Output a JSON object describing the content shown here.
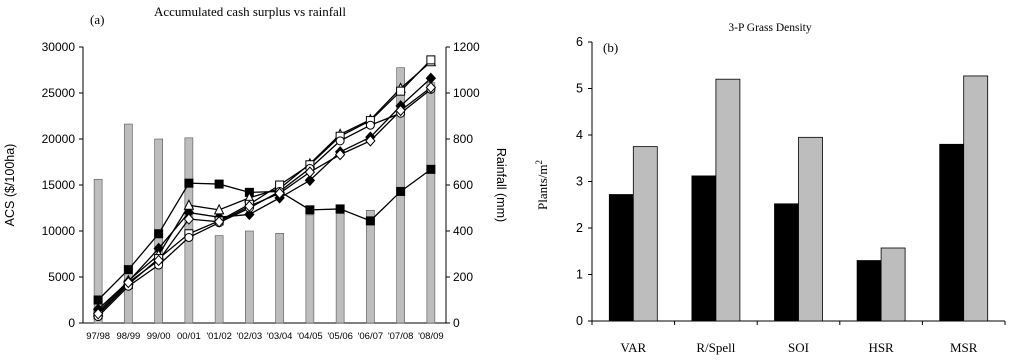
{
  "chart_data": [
    {
      "type": "line",
      "panel_label": "(a)",
      "title": "Accumulated cash surplus vs rainfall",
      "ylabel": "ACS ($/100ha)",
      "y2label": "Rainfall (mm)",
      "categories": [
        "97/98",
        "98/99",
        "99/00",
        "00/01",
        "'01/02",
        "'02/03",
        "'03/04",
        "'04/05",
        "'05/06",
        "'06/07",
        "'07/08",
        "'08/09"
      ],
      "ylim": [
        0,
        30000
      ],
      "yticks": [
        0,
        5000,
        10000,
        15000,
        20000,
        25000,
        30000
      ],
      "y2lim": [
        0,
        1200
      ],
      "y2ticks": [
        0,
        200,
        400,
        600,
        800,
        1000,
        1200
      ],
      "bars": {
        "axis": "right",
        "color": "#bdbdbd",
        "values": [
          625,
          865,
          800,
          805,
          380,
          400,
          390,
          470,
          475,
          490,
          1110,
          1045
        ]
      },
      "series": [
        {
          "marker": "square-filled",
          "values": [
            2500,
            5800,
            9700,
            15200,
            15100,
            14200,
            14300,
            12300,
            12400,
            11100,
            14300,
            16700
          ]
        },
        {
          "marker": "diamond-filled",
          "values": [
            1500,
            4500,
            8100,
            12000,
            11500,
            11800,
            13600,
            15500,
            18600,
            20200,
            23600,
            26600
          ]
        },
        {
          "marker": "triangle-open",
          "values": [
            1200,
            4600,
            7400,
            12800,
            12300,
            13600,
            14600,
            17300,
            20500,
            22100,
            25500,
            28400
          ]
        },
        {
          "marker": "square-open",
          "values": [
            900,
            4200,
            7000,
            9700,
            11100,
            12900,
            15000,
            17200,
            20300,
            22000,
            25200,
            28600
          ]
        },
        {
          "marker": "circle-open",
          "values": [
            700,
            4000,
            6300,
            9300,
            10900,
            12500,
            14300,
            16800,
            19800,
            21500,
            22800,
            25400
          ]
        },
        {
          "marker": "diamond-open",
          "values": [
            1000,
            4400,
            6800,
            11300,
            11000,
            12700,
            14100,
            16400,
            18300,
            19800,
            23100,
            25600
          ]
        }
      ]
    },
    {
      "type": "bar",
      "panel_label": "(b)",
      "title": "3-P Grass Density",
      "ylabel": "Plants/m",
      "ylabel_sup": "2",
      "categories": [
        "VAR",
        "R/Spell",
        "SOI",
        "HSR",
        "MSR"
      ],
      "ylim": [
        0,
        6
      ],
      "yticks": [
        0,
        1,
        2,
        3,
        4,
        5,
        6
      ],
      "series": [
        {
          "color": "#000000",
          "values": [
            2.72,
            3.12,
            2.52,
            1.3,
            3.8
          ]
        },
        {
          "color": "#bdbdbd",
          "values": [
            3.75,
            5.2,
            3.95,
            1.57,
            5.27
          ]
        }
      ]
    }
  ]
}
